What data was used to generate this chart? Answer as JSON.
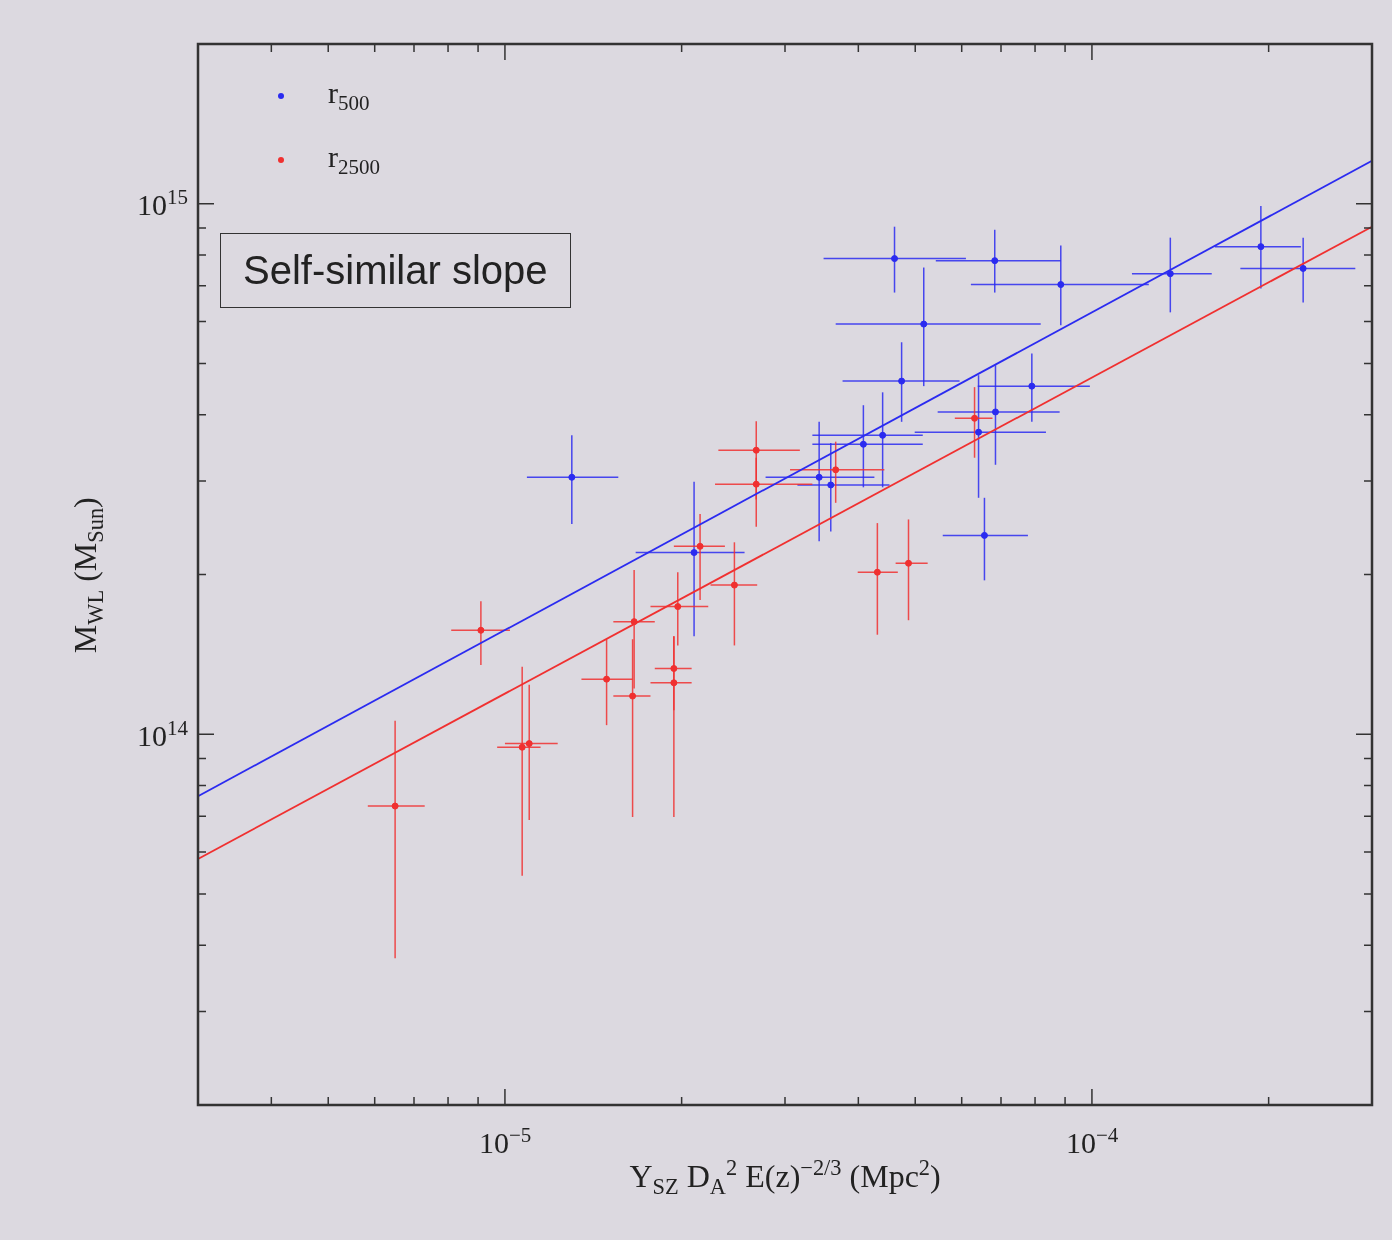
{
  "chart_data": {
    "type": "scatter",
    "xlabel": "Y$_{SZ}$ D$_{A}$$^{2}$ E(z)$^{−2/3}$   (Mpc$^{2}$)",
    "ylabel": "M$_{WL}$   (M$_{Sun}$)",
    "annotations": [
      "Self-similar slope"
    ],
    "log": "xy",
    "xlim": [
      3e-06,
      0.0003
    ],
    "ylim": [
      20000000000000.0,
      2000000000000000.0
    ],
    "xticks": [
      {
        "value": 4e-06,
        "label": null
      },
      {
        "value": 5e-06,
        "label": null
      },
      {
        "value": 6e-06,
        "label": null
      },
      {
        "value": 7e-06,
        "label": null
      },
      {
        "value": 8e-06,
        "label": null
      },
      {
        "value": 9e-06,
        "label": null
      },
      {
        "value": 1e-05,
        "label": "10$^{−5}$"
      },
      {
        "value": 2e-05,
        "label": null
      },
      {
        "value": 3e-05,
        "label": null
      },
      {
        "value": 4e-05,
        "label": null
      },
      {
        "value": 5e-05,
        "label": null
      },
      {
        "value": 6e-05,
        "label": null
      },
      {
        "value": 7e-05,
        "label": null
      },
      {
        "value": 8e-05,
        "label": null
      },
      {
        "value": 9e-05,
        "label": null
      },
      {
        "value": 0.0001,
        "label": "10$^{−4}$"
      },
      {
        "value": 0.0002,
        "label": null
      }
    ],
    "yticks": [
      {
        "value": 30000000000000.0,
        "label": null
      },
      {
        "value": 40000000000000.0,
        "label": null
      },
      {
        "value": 50000000000000.0,
        "label": null
      },
      {
        "value": 60000000000000.0,
        "label": null
      },
      {
        "value": 70000000000000.0,
        "label": null
      },
      {
        "value": 80000000000000.0,
        "label": null
      },
      {
        "value": 90000000000000.0,
        "label": null
      },
      {
        "value": 100000000000000.0,
        "label": "10$^{14}$"
      },
      {
        "value": 200000000000000.0,
        "label": null
      },
      {
        "value": 300000000000000.0,
        "label": null
      },
      {
        "value": 400000000000000.0,
        "label": null
      },
      {
        "value": 500000000000000.0,
        "label": null
      },
      {
        "value": 600000000000000.0,
        "label": null
      },
      {
        "value": 700000000000000.0,
        "label": null
      },
      {
        "value": 800000000000000.0,
        "label": null
      },
      {
        "value": 900000000000000.0,
        "label": null
      },
      {
        "value": 1000000000000000.0,
        "label": "10$^{15}$"
      }
    ],
    "grid": false,
    "legend": "top left",
    "series": [
      {
        "name": "r$_{500}$",
        "color": "#2b2bf0",
        "marker": "circle",
        "x": [
          1.3e-05,
          4.61e-05,
          6.83e-05,
          8.85e-05,
          5.17e-05,
          4.74e-05,
          7.9e-05,
          6.85e-05,
          4.4e-05,
          6.41e-05,
          4.08e-05,
          3.43e-05,
          3.59e-05,
          6.56e-05,
          2.1e-05,
          0.000136,
          0.000194,
          0.000229
        ],
        "values": [
          305000000000000.0,
          788000000000000.0,
          781000000000000.0,
          704000000000000.0,
          593000000000000.0,
          463000000000000.0,
          453000000000000.0,
          405000000000000.0,
          366000000000000.0,
          371000000000000.0,
          352000000000000.0,
          305000000000000.0,
          295000000000000.0,
          237000000000000.0,
          220000000000000.0,
          738000000000000.0,
          830000000000000.0,
          755000000000000.0
        ],
        "xerrors": [
          [
            1.09e-05,
            1.56e-05
          ],
          [
            3.49e-05,
            6.1e-05
          ],
          [
            5.42e-05,
            8.85e-05
          ],
          [
            6.22e-05,
            0.000125
          ],
          [
            3.66e-05,
            8.18e-05
          ],
          [
            3.76e-05,
            5.95e-05
          ],
          [
            6.39e-05,
            9.92e-05
          ],
          [
            5.46e-05,
            8.81e-05
          ],
          [
            3.34e-05,
            5.15e-05
          ],
          [
            4.99e-05,
            8.35e-05
          ],
          [
            3.34e-05,
            5.15e-05
          ],
          [
            2.78e-05,
            4.26e-05
          ],
          [
            3.15e-05,
            4.52e-05
          ],
          [
            5.57e-05,
            7.78e-05
          ],
          [
            1.67e-05,
            2.56e-05
          ],
          [
            0.000117,
            0.00016
          ],
          [
            0.000162,
            0.000227
          ],
          [
            0.000179,
            0.000281
          ]
        ],
        "errors": [
          [
            249000000000000.0,
            366000000000000.0
          ],
          [
            680000000000000.0,
            905000000000000.0
          ],
          [
            680000000000000.0,
            893000000000000.0
          ],
          [
            590000000000000.0,
            834000000000000.0
          ],
          [
            453000000000000.0,
            758000000000000.0
          ],
          [
            388000000000000.0,
            548000000000000.0
          ],
          [
            388000000000000.0,
            522000000000000.0
          ],
          [
            322000000000000.0,
            496000000000000.0
          ],
          [
            292000000000000.0,
            441000000000000.0
          ],
          [
            279000000000000.0,
            475000000000000.0
          ],
          [
            292000000000000.0,
            417000000000000.0
          ],
          [
            231000000000000.0,
            388000000000000.0
          ],
          [
            241000000000000.0,
            354000000000000.0
          ],
          [
            195000000000000.0,
            279000000000000.0
          ],
          [
            153000000000000.0,
            299000000000000.0
          ],
          [
            624000000000000.0,
            863000000000000.0
          ],
          [
            692000000000000.0,
            990000000000000.0
          ],
          [
            651000000000000.0,
            863000000000000.0
          ]
        ]
      },
      {
        "name": "r$_{2500}$",
        "color": "#f03030",
        "marker": "circle",
        "x": [
          6.5e-06,
          9.1e-06,
          1.07e-05,
          1.1e-05,
          1.49e-05,
          1.66e-05,
          1.65e-05,
          1.97e-05,
          1.94e-05,
          1.94e-05,
          2.15e-05,
          2.46e-05,
          2.68e-05,
          2.68e-05,
          3.66e-05,
          4.31e-05,
          4.87e-05,
          6.31e-05
        ],
        "values": [
          73200000000000.0,
          157000000000000.0,
          94500000000000.0,
          96000000000000.0,
          127000000000000.0,
          163000000000000.0,
          118000000000000.0,
          174000000000000.0,
          133000000000000.0,
          125000000000000.0,
          226000000000000.0,
          191000000000000.0,
          343000000000000.0,
          296000000000000.0,
          315000000000000.0,
          202000000000000.0,
          210000000000000.0,
          394000000000000.0
        ],
        "xerrors": [
          [
            5.84e-06,
            7.3e-06
          ],
          [
            8.1e-06,
            1.02e-05
          ],
          [
            9.7e-06,
            1.15e-05
          ],
          [
            1e-05,
            1.23e-05
          ],
          [
            1.35e-05,
            1.65e-05
          ],
          [
            1.53e-05,
            1.8e-05
          ],
          [
            1.53e-05,
            1.77e-05
          ],
          [
            1.77e-05,
            2.22e-05
          ],
          [
            1.8e-05,
            2.08e-05
          ],
          [
            1.77e-05,
            2.08e-05
          ],
          [
            1.94e-05,
            2.37e-05
          ],
          [
            2.24e-05,
            2.69e-05
          ],
          [
            2.31e-05,
            3.18e-05
          ],
          [
            2.28e-05,
            3.34e-05
          ],
          [
            3.06e-05,
            4.43e-05
          ],
          [
            3.99e-05,
            4.67e-05
          ],
          [
            4.63e-05,
            5.25e-05
          ],
          [
            5.84e-05,
            6.77e-05
          ]
        ],
        "errors": [
          [
            37800000000000.0,
            106000000000000.0
          ],
          [
            135000000000000.0,
            178000000000000.0
          ],
          [
            54100000000000.0,
            134000000000000.0
          ],
          [
            68900000000000.0,
            124000000000000.0
          ],
          [
            104000000000000.0,
            151000000000000.0
          ],
          [
            122000000000000.0,
            204000000000000.0
          ],
          [
            69800000000000.0,
            151000000000000.0
          ],
          [
            147000000000000.0,
            202000000000000.0
          ],
          [
            111000000000000.0,
            153000000000000.0
          ],
          [
            69800000000000.0,
            153000000000000.0
          ],
          [
            179000000000000.0,
            260000000000000.0
          ],
          [
            147000000000000.0,
            230000000000000.0
          ],
          [
            277000000000000.0,
            389000000000000.0
          ],
          [
            246000000000000.0,
            332000000000000.0
          ],
          [
            273000000000000.0,
            356000000000000.0
          ],
          [
            154000000000000.0,
            250000000000000.0
          ],
          [
            164000000000000.0,
            254000000000000.0
          ],
          [
            332000000000000.0,
            451000000000000.0
          ]
        ]
      },
      {
        "type": "line",
        "marker": "none",
        "color": "#2b2bf0",
        "x": [
          3e-06,
          0.0003
        ],
        "values": [
          76400000000000.0,
          1205000000000000.0
        ]
      },
      {
        "type": "line",
        "marker": "none",
        "color": "#f03030",
        "x": [
          3e-06,
          0.0003
        ],
        "values": [
          58200000000000.0,
          905000000000000.0
        ]
      }
    ]
  }
}
